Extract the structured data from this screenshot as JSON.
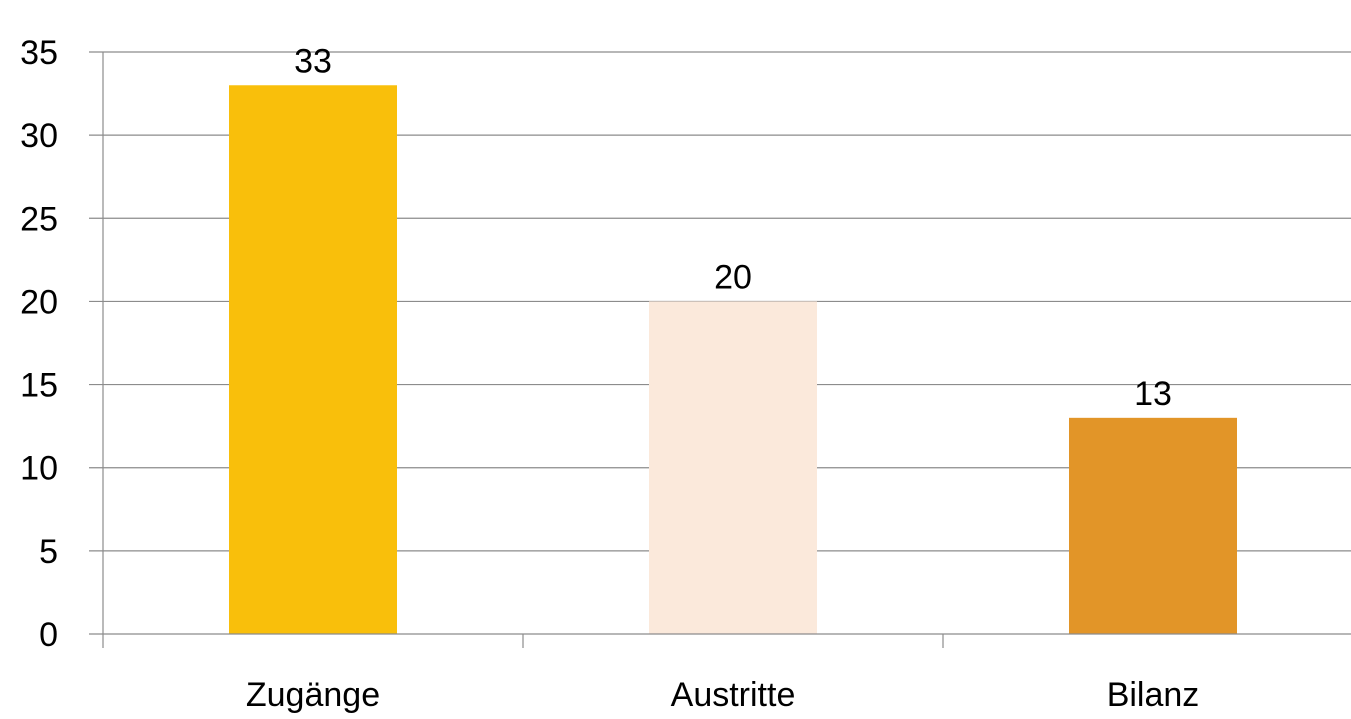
{
  "chart_data": {
    "type": "bar",
    "categories": [
      "Zugänge",
      "Austritte",
      "Bilanz"
    ],
    "values": [
      33,
      20,
      13
    ],
    "data_labels": [
      "33",
      "20",
      "13"
    ],
    "bar_colors": [
      "#F9BF0B",
      "#FBE9DB",
      "#E29528"
    ],
    "ylim": [
      0,
      35
    ],
    "yticks": [
      0,
      5,
      10,
      15,
      20,
      25,
      30,
      35
    ],
    "ytick_labels": [
      "0",
      "5",
      "10",
      "15",
      "20",
      "25",
      "30",
      "35"
    ],
    "grid": true,
    "legend": "none",
    "title": "",
    "xlabel": "",
    "ylabel": ""
  }
}
